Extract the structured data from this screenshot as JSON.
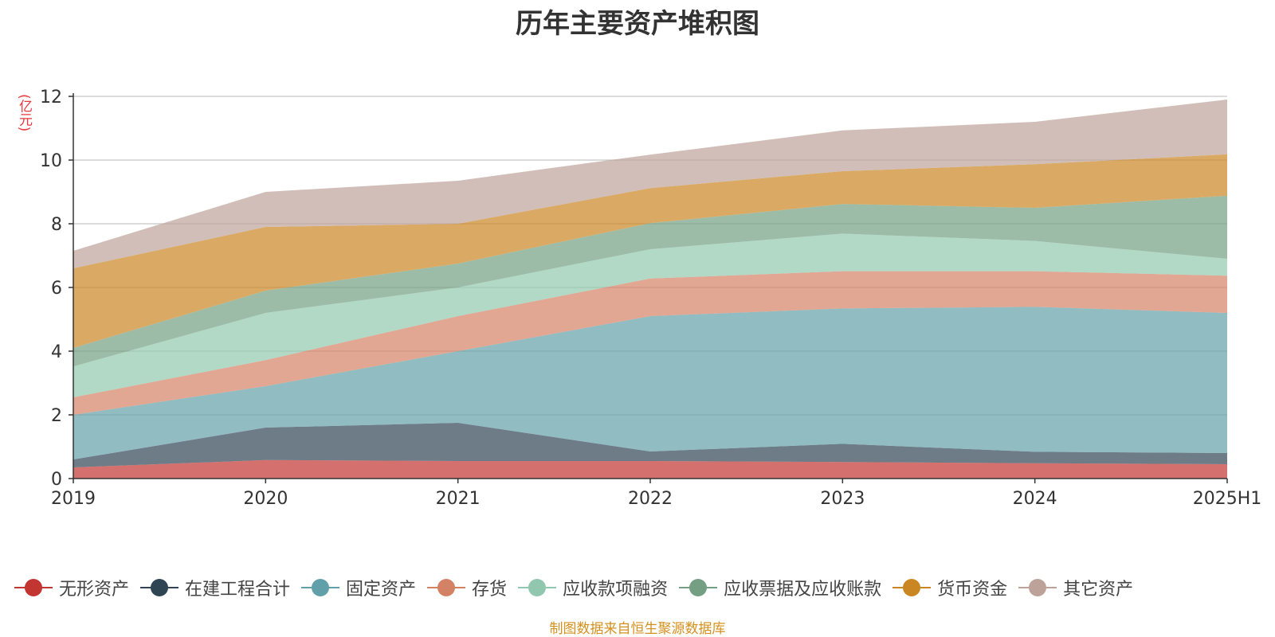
{
  "chart_data": {
    "type": "area",
    "title": "历年主要资产堆积图",
    "ylabel": "(亿元)",
    "source": "制图数据来自恒生聚源数据库",
    "x": [
      "2019",
      "2020",
      "2021",
      "2022",
      "2023",
      "2024",
      "2025H1"
    ],
    "ylim": [
      0,
      12
    ],
    "yticks": [
      "0",
      "2",
      "4",
      "6",
      "8",
      "10",
      "12"
    ],
    "grid": true,
    "legend_position": "bottom",
    "stacked": true,
    "series": [
      {
        "name": "无形资产",
        "color": "#c23531",
        "values": [
          0.35,
          0.58,
          0.55,
          0.55,
          0.52,
          0.48,
          0.45
        ]
      },
      {
        "name": "在建工程合计",
        "color": "#2f4554",
        "values": [
          0.25,
          1.02,
          1.2,
          0.3,
          0.57,
          0.36,
          0.35
        ]
      },
      {
        "name": "固定资产",
        "color": "#61a0a8",
        "values": [
          1.4,
          1.3,
          2.25,
          4.25,
          4.25,
          4.55,
          4.4
        ]
      },
      {
        "name": "存货",
        "color": "#d48265",
        "values": [
          0.55,
          0.82,
          1.1,
          1.18,
          1.17,
          1.12,
          1.17
        ]
      },
      {
        "name": "应收款项融资",
        "color": "#91c7ae",
        "values": [
          0.97,
          1.48,
          0.9,
          0.92,
          1.18,
          0.95,
          0.53
        ]
      },
      {
        "name": "应收票据及应收账款",
        "color": "#749f83",
        "values": [
          0.58,
          0.7,
          0.75,
          0.82,
          0.93,
          1.04,
          1.98
        ]
      },
      {
        "name": "货币资金",
        "color": "#ca8622",
        "values": [
          2.5,
          2.0,
          1.25,
          1.1,
          1.03,
          1.37,
          1.3
        ]
      },
      {
        "name": "其它资产",
        "color": "#bda29a",
        "values": [
          0.55,
          1.1,
          1.35,
          1.05,
          1.28,
          1.33,
          1.72
        ]
      }
    ]
  }
}
